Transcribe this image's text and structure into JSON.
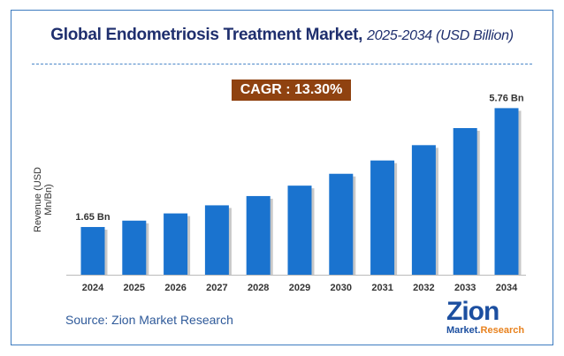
{
  "title": {
    "main": "Global Endometriosis Treatment Market,",
    "sub": "2025-2034 (USD Billion)"
  },
  "cagr": "CAGR : 13.30%",
  "source": "Source: Zion Market Research",
  "logo": {
    "brand": "Zion",
    "market": "Market.",
    "research": "Research"
  },
  "colors": {
    "bar": "#1a73cf",
    "cagr_bg": "#8f4210",
    "title": "#1f2f6e"
  },
  "chart_data": {
    "type": "bar",
    "categories": [
      "2024",
      "2025",
      "2026",
      "2027",
      "2028",
      "2029",
      "2030",
      "2031",
      "2032",
      "2033",
      "2034"
    ],
    "values": [
      1.65,
      1.87,
      2.12,
      2.4,
      2.72,
      3.08,
      3.49,
      3.95,
      4.48,
      5.07,
      5.76
    ],
    "data_labels": {
      "0": "1.65 Bn",
      "10": "5.76 Bn"
    },
    "ylabel": "Revenue (USD Mn/Bn)",
    "xlabel": "",
    "ylim": [
      0,
      6.2
    ],
    "grid": false
  }
}
